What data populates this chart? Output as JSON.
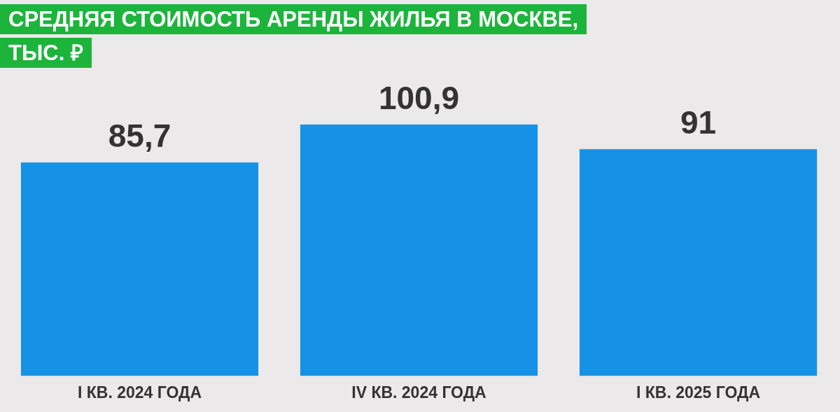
{
  "chart_data": {
    "type": "bar",
    "title": "СРЕДНЯЯ СТОИМОСТЬ АРЕНДЫ ЖИЛЬЯ В МОСКВЕ, ТЫС. ₽",
    "categories": [
      "I КВ. 2024 ГОДА",
      "IV КВ. 2024 ГОДА",
      "I КВ. 2025 ГОДА"
    ],
    "values": [
      85.7,
      100.9,
      91
    ],
    "color": "#1592e6",
    "value_labels": [
      "85,7",
      "100,9",
      "91"
    ],
    "grid": false,
    "legend": false
  }
}
